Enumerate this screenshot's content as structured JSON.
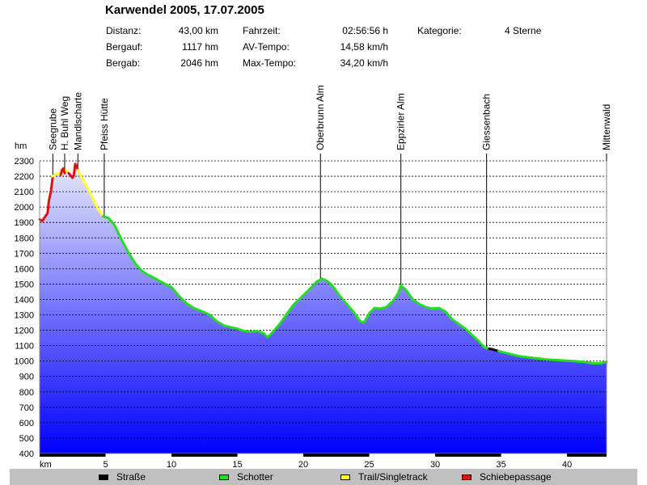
{
  "title": "Karwendel 2005, 17.07.2005",
  "stats": [
    {
      "label": "Distanz:",
      "value": "43,00 km"
    },
    {
      "label": "Bergauf:",
      "value": "1117 hm"
    },
    {
      "label": "Bergab:",
      "value": "2046 hm"
    },
    {
      "label": "Fahrzeit:",
      "value": "02:56:56 h"
    },
    {
      "label": "AV-Tempo:",
      "value": "14,58 km/h"
    },
    {
      "label": "Max-Tempo:",
      "value": "34,20 km/h"
    },
    {
      "label": "Kategorie:",
      "value": "4 Sterne"
    }
  ],
  "legend": [
    {
      "name": "Straße",
      "color": "#000000"
    },
    {
      "name": "Schotter",
      "color": "#22dd22"
    },
    {
      "name": "Trail/Singletrack",
      "color": "#ffff33"
    },
    {
      "name": "Schiebepassage",
      "color": "#dd1111"
    }
  ],
  "chart_data": {
    "type": "area",
    "title": "Karwendel 2005, 17.07.2005",
    "xlabel": "km",
    "ylabel": "hm",
    "xlim": [
      0,
      43
    ],
    "ylim": [
      400,
      2300
    ],
    "x_ticks": [
      5,
      10,
      15,
      20,
      25,
      30,
      35,
      40
    ],
    "y_ticks": [
      400,
      500,
      600,
      700,
      800,
      900,
      1000,
      1100,
      1200,
      1300,
      1400,
      1500,
      1600,
      1700,
      1800,
      1900,
      2000,
      2100,
      2200,
      2300
    ],
    "grid": true,
    "colors": {
      "fill_top": "#e8e8fb",
      "fill_bottom": "#0000ff",
      "grid": "#000000",
      "axis": "#888888"
    },
    "locations": [
      {
        "name": "Seegrube",
        "km": 1.0
      },
      {
        "name": "H. Buhl Weg",
        "km": 1.9
      },
      {
        "name": "Mandlscharte",
        "km": 2.9
      },
      {
        "name": "Pfeiss Hütte",
        "km": 4.9
      },
      {
        "name": "Oberbrunn Alm",
        "km": 21.3
      },
      {
        "name": "Eppzirler Alm",
        "km": 27.4
      },
      {
        "name": "Giessenbach",
        "km": 33.9
      },
      {
        "name": "Mittenwald",
        "km": 43.0
      }
    ],
    "series": [
      {
        "name": "Schiebepassage",
        "color": "#dd1111",
        "points": [
          [
            0.0,
            1920
          ],
          [
            0.2,
            1910
          ],
          [
            0.4,
            1935
          ],
          [
            0.6,
            1960
          ],
          [
            0.7,
            2040
          ],
          [
            0.85,
            2100
          ],
          [
            1.0,
            2200
          ]
        ]
      },
      {
        "name": "Trail/Singletrack",
        "color": "#ffff33",
        "points": [
          [
            1.0,
            2200
          ],
          [
            1.3,
            2220
          ],
          [
            1.6,
            2210
          ],
          [
            1.8,
            2220
          ],
          [
            2.0,
            2240
          ],
          [
            2.2,
            2220
          ]
        ]
      },
      {
        "name": "Schiebepassage",
        "color": "#dd1111",
        "points": [
          [
            1.6,
            2210
          ],
          [
            1.7,
            2240
          ],
          [
            1.8,
            2250
          ],
          [
            1.9,
            2220
          ]
        ]
      },
      {
        "name": "Schiebepassage",
        "color": "#dd1111",
        "points": [
          [
            2.2,
            2220
          ],
          [
            2.5,
            2190
          ],
          [
            2.6,
            2210
          ],
          [
            2.7,
            2280
          ],
          [
            2.8,
            2270
          ],
          [
            2.9,
            2240
          ]
        ]
      },
      {
        "name": "Trail/Singletrack",
        "color": "#ffff33",
        "points": [
          [
            2.9,
            2240
          ],
          [
            3.2,
            2190
          ],
          [
            3.6,
            2130
          ],
          [
            4.0,
            2060
          ],
          [
            4.4,
            1990
          ],
          [
            4.8,
            1940
          ]
        ]
      },
      {
        "name": "Schotter",
        "color": "#22dd22",
        "points": [
          [
            4.8,
            1940
          ],
          [
            5.2,
            1930
          ],
          [
            5.7,
            1880
          ],
          [
            6.2,
            1790
          ],
          [
            6.7,
            1710
          ],
          [
            7.2,
            1640
          ],
          [
            7.7,
            1590
          ],
          [
            8.2,
            1560
          ],
          [
            8.7,
            1540
          ],
          [
            9.3,
            1510
          ],
          [
            10.0,
            1480
          ],
          [
            10.6,
            1420
          ],
          [
            11.2,
            1370
          ],
          [
            11.8,
            1340
          ],
          [
            12.4,
            1320
          ],
          [
            12.9,
            1300
          ],
          [
            13.4,
            1260
          ],
          [
            14.0,
            1230
          ],
          [
            14.5,
            1220
          ],
          [
            15.0,
            1210
          ],
          [
            15.5,
            1195
          ],
          [
            16.0,
            1190
          ],
          [
            16.5,
            1195
          ],
          [
            17.0,
            1180
          ],
          [
            17.3,
            1155
          ],
          [
            17.6,
            1180
          ],
          [
            18.2,
            1240
          ],
          [
            18.7,
            1300
          ],
          [
            19.2,
            1360
          ],
          [
            19.8,
            1410
          ],
          [
            20.4,
            1460
          ],
          [
            21.0,
            1515
          ],
          [
            21.4,
            1535
          ],
          [
            21.8,
            1520
          ],
          [
            22.2,
            1490
          ],
          [
            22.7,
            1430
          ],
          [
            23.3,
            1370
          ],
          [
            23.8,
            1320
          ],
          [
            24.3,
            1260
          ],
          [
            24.6,
            1250
          ],
          [
            25.0,
            1310
          ],
          [
            25.4,
            1345
          ],
          [
            25.8,
            1340
          ],
          [
            26.3,
            1350
          ],
          [
            26.8,
            1390
          ],
          [
            27.2,
            1440
          ],
          [
            27.4,
            1490
          ],
          [
            27.8,
            1460
          ],
          [
            28.3,
            1400
          ],
          [
            28.8,
            1370
          ],
          [
            29.3,
            1350
          ],
          [
            29.8,
            1340
          ],
          [
            30.3,
            1345
          ],
          [
            30.8,
            1320
          ],
          [
            31.3,
            1270
          ],
          [
            31.8,
            1240
          ],
          [
            32.3,
            1210
          ],
          [
            32.8,
            1170
          ],
          [
            33.3,
            1130
          ],
          [
            33.7,
            1090
          ],
          [
            34.1,
            1080
          ]
        ]
      },
      {
        "name": "Straße",
        "color": "#000000",
        "points": [
          [
            34.1,
            1080
          ],
          [
            34.4,
            1075
          ],
          [
            34.8,
            1065
          ]
        ]
      },
      {
        "name": "Schotter",
        "color": "#22dd22",
        "points": [
          [
            34.8,
            1065
          ],
          [
            35.5,
            1050
          ],
          [
            36.5,
            1030
          ],
          [
            37.5,
            1020
          ],
          [
            38.5,
            1010
          ],
          [
            39.5,
            1005
          ],
          [
            40.5,
            1000
          ],
          [
            41.2,
            995
          ],
          [
            42.0,
            985
          ],
          [
            42.5,
            985
          ],
          [
            43.0,
            995
          ]
        ]
      }
    ]
  }
}
